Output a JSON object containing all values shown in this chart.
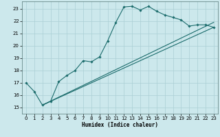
{
  "xlabel": "Humidex (Indice chaleur)",
  "background_color": "#cce8ec",
  "grid_color": "#aacfd4",
  "line_color": "#1a6b6b",
  "xlim": [
    -0.5,
    23.5
  ],
  "ylim": [
    14.5,
    23.6
  ],
  "xticks": [
    0,
    1,
    2,
    3,
    4,
    5,
    6,
    7,
    8,
    9,
    10,
    11,
    12,
    13,
    14,
    15,
    16,
    17,
    18,
    19,
    20,
    21,
    22,
    23
  ],
  "yticks": [
    15,
    16,
    17,
    18,
    19,
    20,
    21,
    22,
    23
  ],
  "curve_x": [
    0,
    1,
    2,
    3,
    4,
    5,
    6,
    7,
    8,
    9,
    10,
    11,
    12,
    13,
    14,
    15,
    16,
    17,
    18,
    19,
    20,
    21,
    22,
    23
  ],
  "curve_y": [
    17.0,
    16.3,
    15.2,
    15.5,
    17.1,
    17.6,
    18.0,
    18.8,
    18.7,
    19.1,
    20.4,
    21.9,
    23.15,
    23.2,
    22.9,
    23.2,
    22.8,
    22.5,
    22.3,
    22.1,
    21.6,
    21.7,
    21.7,
    21.5
  ],
  "line1_x": [
    2,
    23
  ],
  "line1_y": [
    15.2,
    21.5
  ],
  "line2_x": [
    2,
    23
  ],
  "line2_y": [
    15.2,
    21.9
  ],
  "xlabel_fontsize": 5.5,
  "tick_fontsize": 5.0
}
